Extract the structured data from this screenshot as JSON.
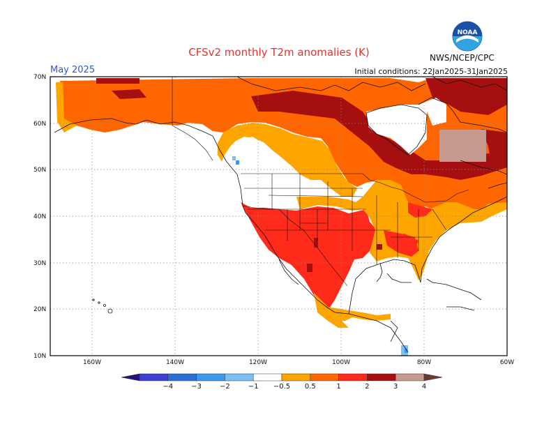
{
  "header": {
    "title": "CFSv2 monthly T2m anomalies (K)",
    "period": "May 2025",
    "initial_conditions": "Initial conditions: 22Jan2025-31Jan2025",
    "agency": "NWS/NCEP/CPC"
  },
  "logo": {
    "text": "NOAA",
    "colors": [
      "#1b4fa8",
      "#2fa4e0"
    ]
  },
  "map": {
    "lat_labels": [
      "70N",
      "60N",
      "50N",
      "40N",
      "30N",
      "20N",
      "10N"
    ],
    "lon_labels": [
      "160W",
      "140W",
      "120W",
      "100W",
      "80W",
      "60W"
    ],
    "grid": true
  },
  "colorbar": {
    "colors": [
      "#2a0f7a",
      "#3c3fd0",
      "#2a6fd6",
      "#3a98ef",
      "#7cbff5",
      "#ffffff",
      "#ffa500",
      "#ff6600",
      "#ff2a1a",
      "#a50f0f",
      "#c79a8f",
      "#6b3b2e"
    ],
    "tick_labels": [
      "−4",
      "−3",
      "−2",
      "−1",
      "−0.5",
      "0.5",
      "1",
      "2",
      "3",
      "4"
    ]
  }
}
